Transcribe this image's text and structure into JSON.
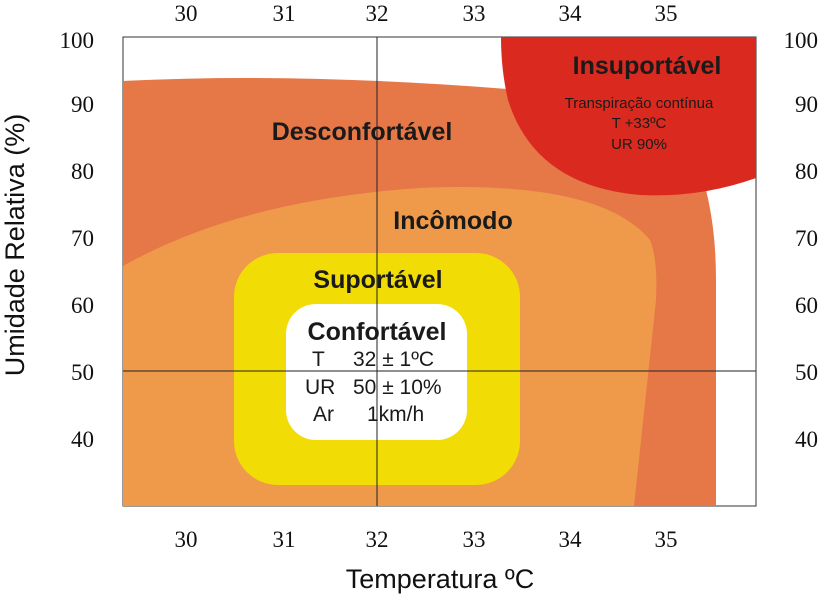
{
  "colors": {
    "desconfortavel": "#e67848",
    "incomodo": "#ef9a4b",
    "suportavel": "#f1dc06",
    "confortavel": "#ffffff",
    "insuportavel": "#da2a1f"
  },
  "x_axis": {
    "title": "Temperatura ºC",
    "ticks": [
      "30",
      "31",
      "32",
      "33",
      "34",
      "35"
    ]
  },
  "y_axis": {
    "title": "Umidade Relativa (%)",
    "ticks": [
      "100",
      "90",
      "80",
      "70",
      "60",
      "50",
      "40"
    ]
  },
  "zones": {
    "insuportavel": {
      "title": "Insuportável",
      "lines": [
        "Transpiração contínua",
        "T +33ºC",
        "UR 90%"
      ]
    },
    "desconfortavel": {
      "title": "Desconfortável"
    },
    "incomodo": {
      "title": "Incômodo"
    },
    "suportavel": {
      "title": "Suportável"
    },
    "confortavel": {
      "title": "Confortável",
      "rows": [
        {
          "label": "T",
          "value": "32 ± 1ºC"
        },
        {
          "label": "UR",
          "value": "50 ± 10%"
        },
        {
          "label": "Ar",
          "value": "1km/h"
        }
      ]
    }
  }
}
